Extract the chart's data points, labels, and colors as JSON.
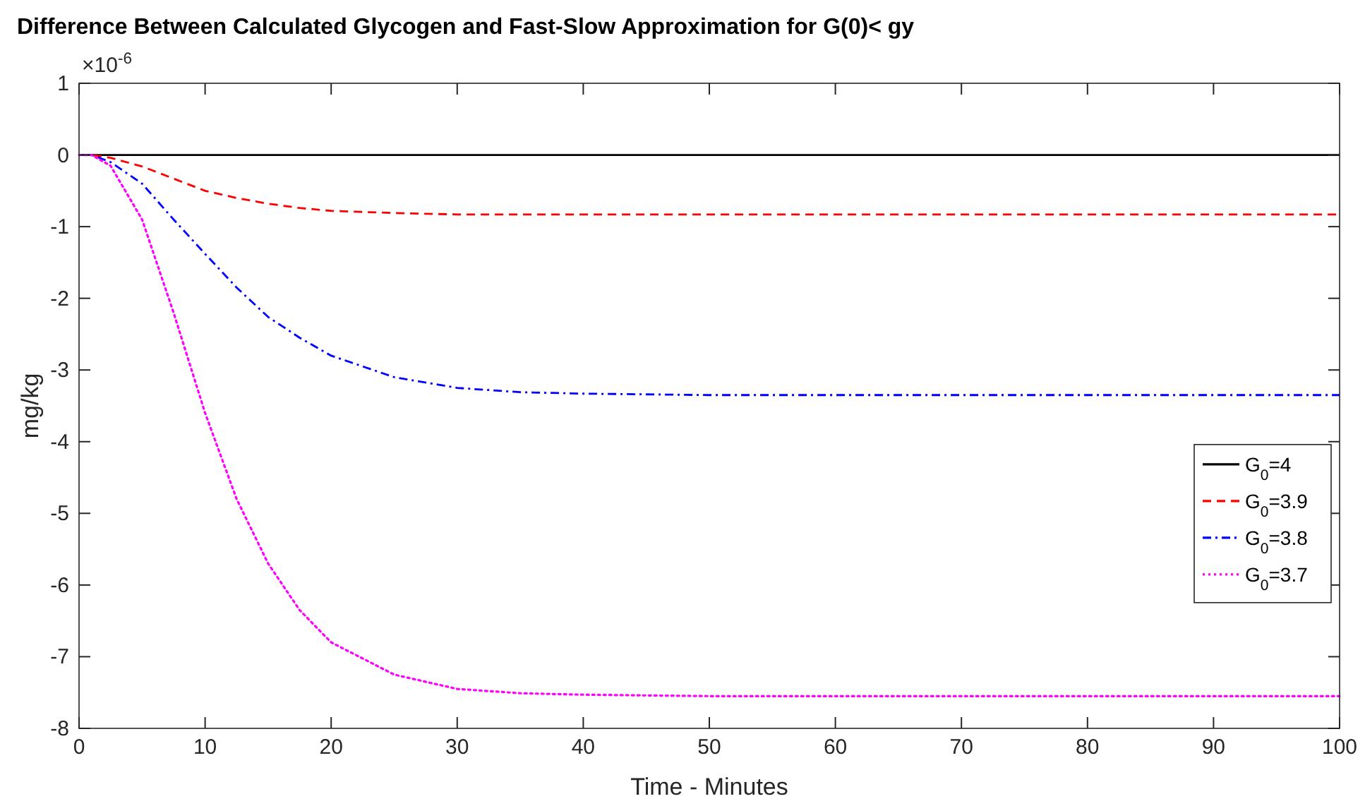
{
  "chart_data": {
    "type": "line",
    "title": "Difference Between Calculated Glycogen and Fast-Slow Approximation for G(0)< gy",
    "xlabel": "Time - Minutes",
    "ylabel": "mg/kg",
    "annotations": [
      "×10$^{-6}$"
    ],
    "x": [
      0,
      1,
      2.5,
      5,
      7.5,
      10,
      12.5,
      15,
      17.5,
      20,
      25,
      30,
      35,
      40,
      50,
      60,
      70,
      80,
      90,
      100
    ],
    "xlim": [
      0,
      100
    ],
    "xticks": [
      0,
      10,
      20,
      30,
      40,
      50,
      60,
      70,
      80,
      90,
      100
    ],
    "ylim": [
      -8,
      1
    ],
    "yticks": [
      1,
      0,
      -1,
      -2,
      -3,
      -4,
      -5,
      -6,
      -7,
      -8
    ],
    "grid": false,
    "legend": "right",
    "series": [
      {
        "name": "G$_{0}$=4",
        "color": "#000000",
        "line_style": "solid",
        "values": [
          0,
          0,
          0,
          0,
          0,
          0,
          0,
          0,
          0,
          0,
          0,
          0,
          0,
          0,
          0,
          0,
          0,
          0,
          0,
          0
        ]
      },
      {
        "name": "G$_{0}$=3.9",
        "color": "#ff0000",
        "line_style": "dashed",
        "values": [
          0,
          0,
          -0.04,
          -0.16,
          -0.33,
          -0.5,
          -0.6,
          -0.68,
          -0.74,
          -0.78,
          -0.81,
          -0.83,
          -0.83,
          -0.83,
          -0.83,
          -0.83,
          -0.83,
          -0.83,
          -0.83,
          -0.83
        ]
      },
      {
        "name": "G$_{0}$=3.8",
        "color": "#0000ff",
        "line_style": "dashdot",
        "values": [
          0,
          0,
          -0.1,
          -0.4,
          -0.9,
          -1.38,
          -1.85,
          -2.26,
          -2.55,
          -2.8,
          -3.1,
          -3.25,
          -3.31,
          -3.33,
          -3.35,
          -3.35,
          -3.35,
          -3.35,
          -3.35,
          -3.35
        ]
      },
      {
        "name": "G$_{0}$=3.7",
        "color": "#ff00ff",
        "line_style": "dotted",
        "values": [
          0,
          0,
          -0.15,
          -0.9,
          -2.2,
          -3.6,
          -4.8,
          -5.7,
          -6.35,
          -6.8,
          -7.25,
          -7.45,
          -7.51,
          -7.53,
          -7.55,
          -7.55,
          -7.55,
          -7.55,
          -7.55,
          -7.55
        ]
      }
    ]
  }
}
